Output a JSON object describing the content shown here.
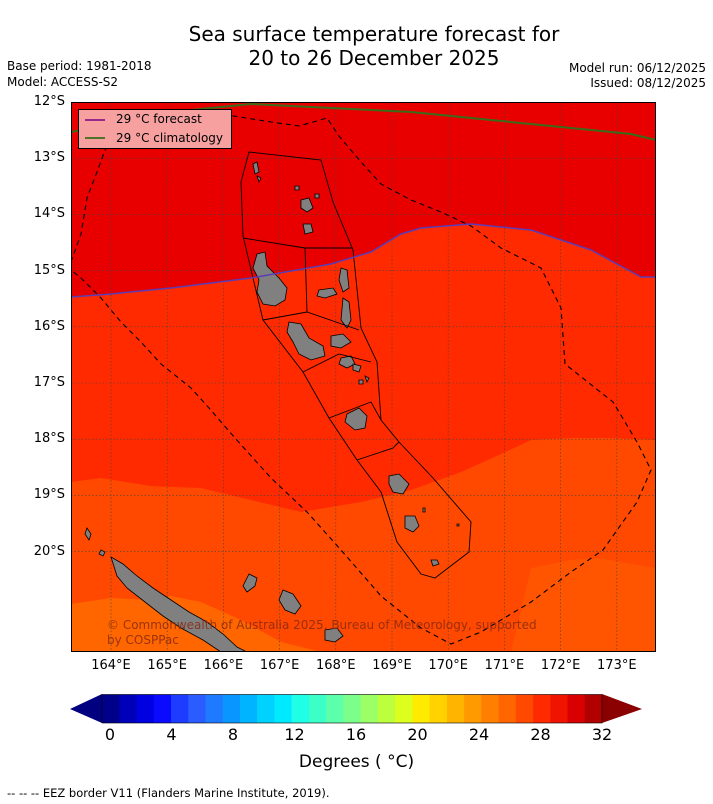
{
  "title": {
    "line1": "Sea surface temperature forecast for",
    "line2": "20 to 26 December 2025"
  },
  "meta": {
    "base_period": "Base period: 1981-2018",
    "model": "Model: ACCESS-S2",
    "model_run": "Model run: 06/12/2025",
    "issued": "Issued: 08/12/2025"
  },
  "legend": {
    "forecast_label": "29 °C  forecast",
    "climatology_label": "29 °C  climatology",
    "forecast_color": "#8b1a8b",
    "climatology_color": "#3a6b1a"
  },
  "map": {
    "lat_labels": [
      "12°S",
      "13°S",
      "14°S",
      "15°S",
      "16°S",
      "17°S",
      "18°S",
      "19°S",
      "20°S"
    ],
    "lon_labels": [
      "164°E",
      "165°E",
      "166°E",
      "167°E",
      "168°E",
      "169°E",
      "170°E",
      "171°E",
      "172°E",
      "173°E"
    ],
    "credit_line1": "© Commonwealth of Australia 2025, Bureau of Meteorology, supported",
    "credit_line2": "by COSPPac"
  },
  "colorbar": {
    "tick_labels": [
      "0",
      "4",
      "8",
      "12",
      "16",
      "20",
      "24",
      "28",
      "32"
    ],
    "title": "Degrees ( °C)",
    "colors": [
      "#00008b",
      "#0000b8",
      "#0000e0",
      "#0a0aff",
      "#1e3cff",
      "#2a5cff",
      "#1e7bff",
      "#0a96ff",
      "#00b4ff",
      "#00d2ff",
      "#00eaff",
      "#1effe6",
      "#3cffc8",
      "#5cffaa",
      "#7cff8a",
      "#9cff66",
      "#bcff3c",
      "#dcff1e",
      "#ffeb00",
      "#ffd200",
      "#ffb400",
      "#ff9a00",
      "#ff8000",
      "#ff6600",
      "#ff4800",
      "#ff2a00",
      "#f01400",
      "#d80000",
      "#b00000"
    ],
    "under_color": "#000080",
    "over_color": "#8b0000"
  },
  "footnote": "--  --  -- EEZ border V11 (Flanders Marine Institute, 2019)."
}
